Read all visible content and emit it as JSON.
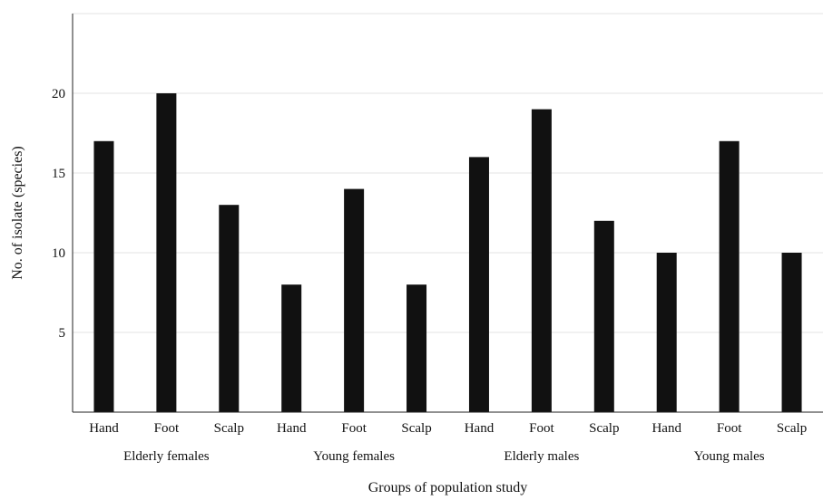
{
  "chart_data": {
    "type": "bar",
    "title": "",
    "xlabel": "Groups of population study",
    "ylabel": "No. of isolate (species)",
    "ylim": [
      0,
      25
    ],
    "yticks": [
      5,
      10,
      15,
      20
    ],
    "grid": true,
    "legend": "none",
    "bar_color": "#111111",
    "groups": [
      {
        "name": "Elderly females",
        "categories": [
          "Hand",
          "Foot",
          "Scalp"
        ],
        "values": [
          17,
          20,
          13
        ]
      },
      {
        "name": "Young females",
        "categories": [
          "Hand",
          "Foot",
          "Scalp"
        ],
        "values": [
          8,
          14,
          8
        ]
      },
      {
        "name": "Elderly males",
        "categories": [
          "Hand",
          "Foot",
          "Scalp"
        ],
        "values": [
          16,
          19,
          12
        ]
      },
      {
        "name": "Young males",
        "categories": [
          "Hand",
          "Foot",
          "Scalp"
        ],
        "values": [
          10,
          17,
          10
        ]
      }
    ]
  }
}
